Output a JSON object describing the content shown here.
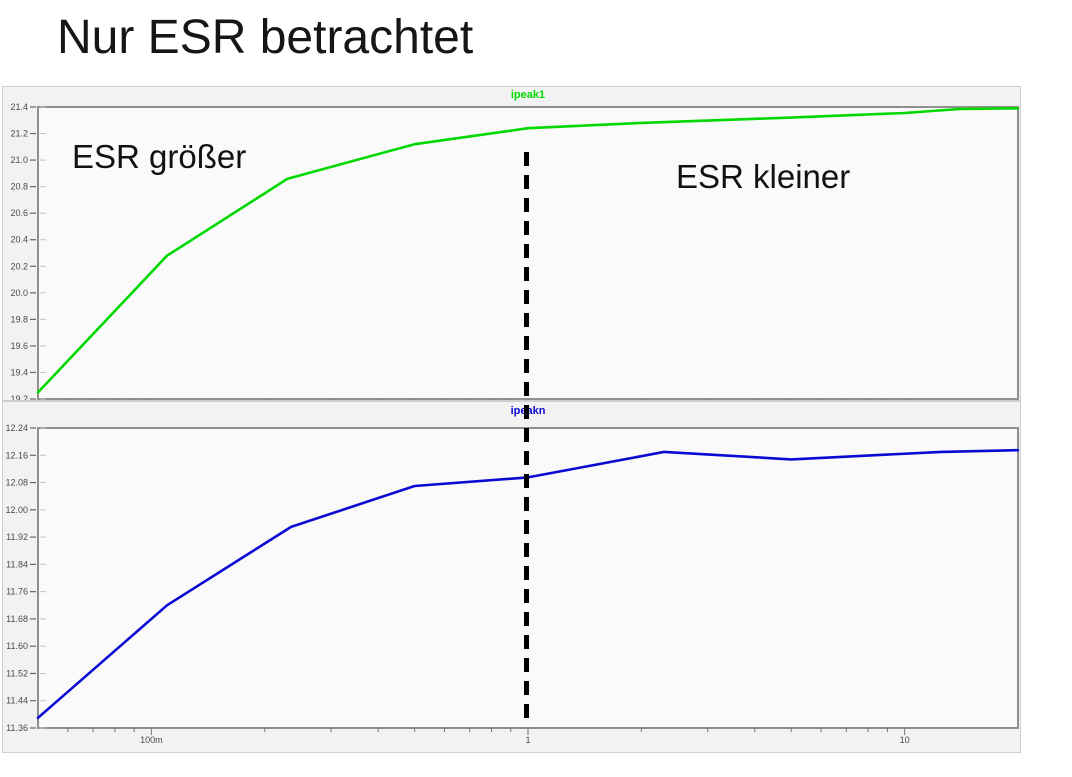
{
  "slide": {
    "title": "Nur ESR betrachtet"
  },
  "annotations": {
    "left": "ESR größer",
    "right": "ESR kleiner"
  },
  "colors": {
    "trace_green": "#00d900",
    "trace_blue": "#0a0ad2",
    "plot_background": "#fafafa",
    "plot_border": "#8f8f8f",
    "tick_label": "#4a4a4a",
    "dashed_line": "#000000"
  },
  "dashed_marker": {
    "x_value": 1
  },
  "chart_data": [
    {
      "type": "line",
      "title": "ipeak1",
      "series_color": "#00d900",
      "x_scale": "log",
      "xlim": [
        0.05,
        20
      ],
      "ylim": [
        19.2,
        21.4
      ],
      "ylabel": "",
      "xlabel": "",
      "grid": false,
      "y_ticks": [
        {
          "value": 21.4,
          "label": "21.4"
        },
        {
          "value": 21.2,
          "label": "21.2"
        },
        {
          "value": 21.0,
          "label": "21.0"
        },
        {
          "value": 20.8,
          "label": "20.8"
        },
        {
          "value": 20.6,
          "label": "20.6"
        },
        {
          "value": 20.4,
          "label": "20.4"
        },
        {
          "value": 20.2,
          "label": "20.2"
        },
        {
          "value": 20.0,
          "label": "20.0"
        },
        {
          "value": 19.8,
          "label": "19.8"
        },
        {
          "value": 19.6,
          "label": "19.6"
        },
        {
          "value": 19.4,
          "label": "19.4"
        },
        {
          "value": 19.2,
          "label": "19.2"
        }
      ],
      "x_ticks": [
        {
          "value": 0.1,
          "label": "100m"
        },
        {
          "value": 1,
          "label": "1"
        },
        {
          "value": 10,
          "label": "10"
        }
      ],
      "points": [
        [
          0.05,
          19.25
        ],
        [
          0.11,
          20.28
        ],
        [
          0.23,
          20.86
        ],
        [
          0.5,
          21.12
        ],
        [
          1,
          21.24
        ],
        [
          2,
          21.28
        ],
        [
          5,
          21.32
        ],
        [
          10,
          21.355
        ],
        [
          14,
          21.385
        ],
        [
          20,
          21.39
        ]
      ]
    },
    {
      "type": "line",
      "title": "ipeakn",
      "series_color": "#0a0ad2",
      "x_scale": "log",
      "xlim": [
        0.05,
        20
      ],
      "ylim": [
        11.36,
        12.24
      ],
      "ylabel": "",
      "xlabel": "",
      "grid": false,
      "y_ticks": [
        {
          "value": 12.24,
          "label": "12.24"
        },
        {
          "value": 12.16,
          "label": "12.16"
        },
        {
          "value": 12.08,
          "label": "12.08"
        },
        {
          "value": 12.0,
          "label": "12.00"
        },
        {
          "value": 11.92,
          "label": "11.92"
        },
        {
          "value": 11.84,
          "label": "11.84"
        },
        {
          "value": 11.76,
          "label": "11.76"
        },
        {
          "value": 11.68,
          "label": "11.68"
        },
        {
          "value": 11.6,
          "label": "11.60"
        },
        {
          "value": 11.52,
          "label": "11.52"
        },
        {
          "value": 11.44,
          "label": "11.44"
        },
        {
          "value": 11.36,
          "label": "11.36"
        }
      ],
      "x_ticks": [
        {
          "value": 0.1,
          "label": "100m"
        },
        {
          "value": 1,
          "label": "1"
        },
        {
          "value": 10,
          "label": "10"
        }
      ],
      "points": [
        [
          0.05,
          11.39
        ],
        [
          0.11,
          11.72
        ],
        [
          0.235,
          11.95
        ],
        [
          0.5,
          12.07
        ],
        [
          1,
          12.095
        ],
        [
          2.3,
          12.17
        ],
        [
          5,
          12.148
        ],
        [
          12.5,
          12.17
        ],
        [
          20,
          12.175
        ]
      ]
    }
  ]
}
